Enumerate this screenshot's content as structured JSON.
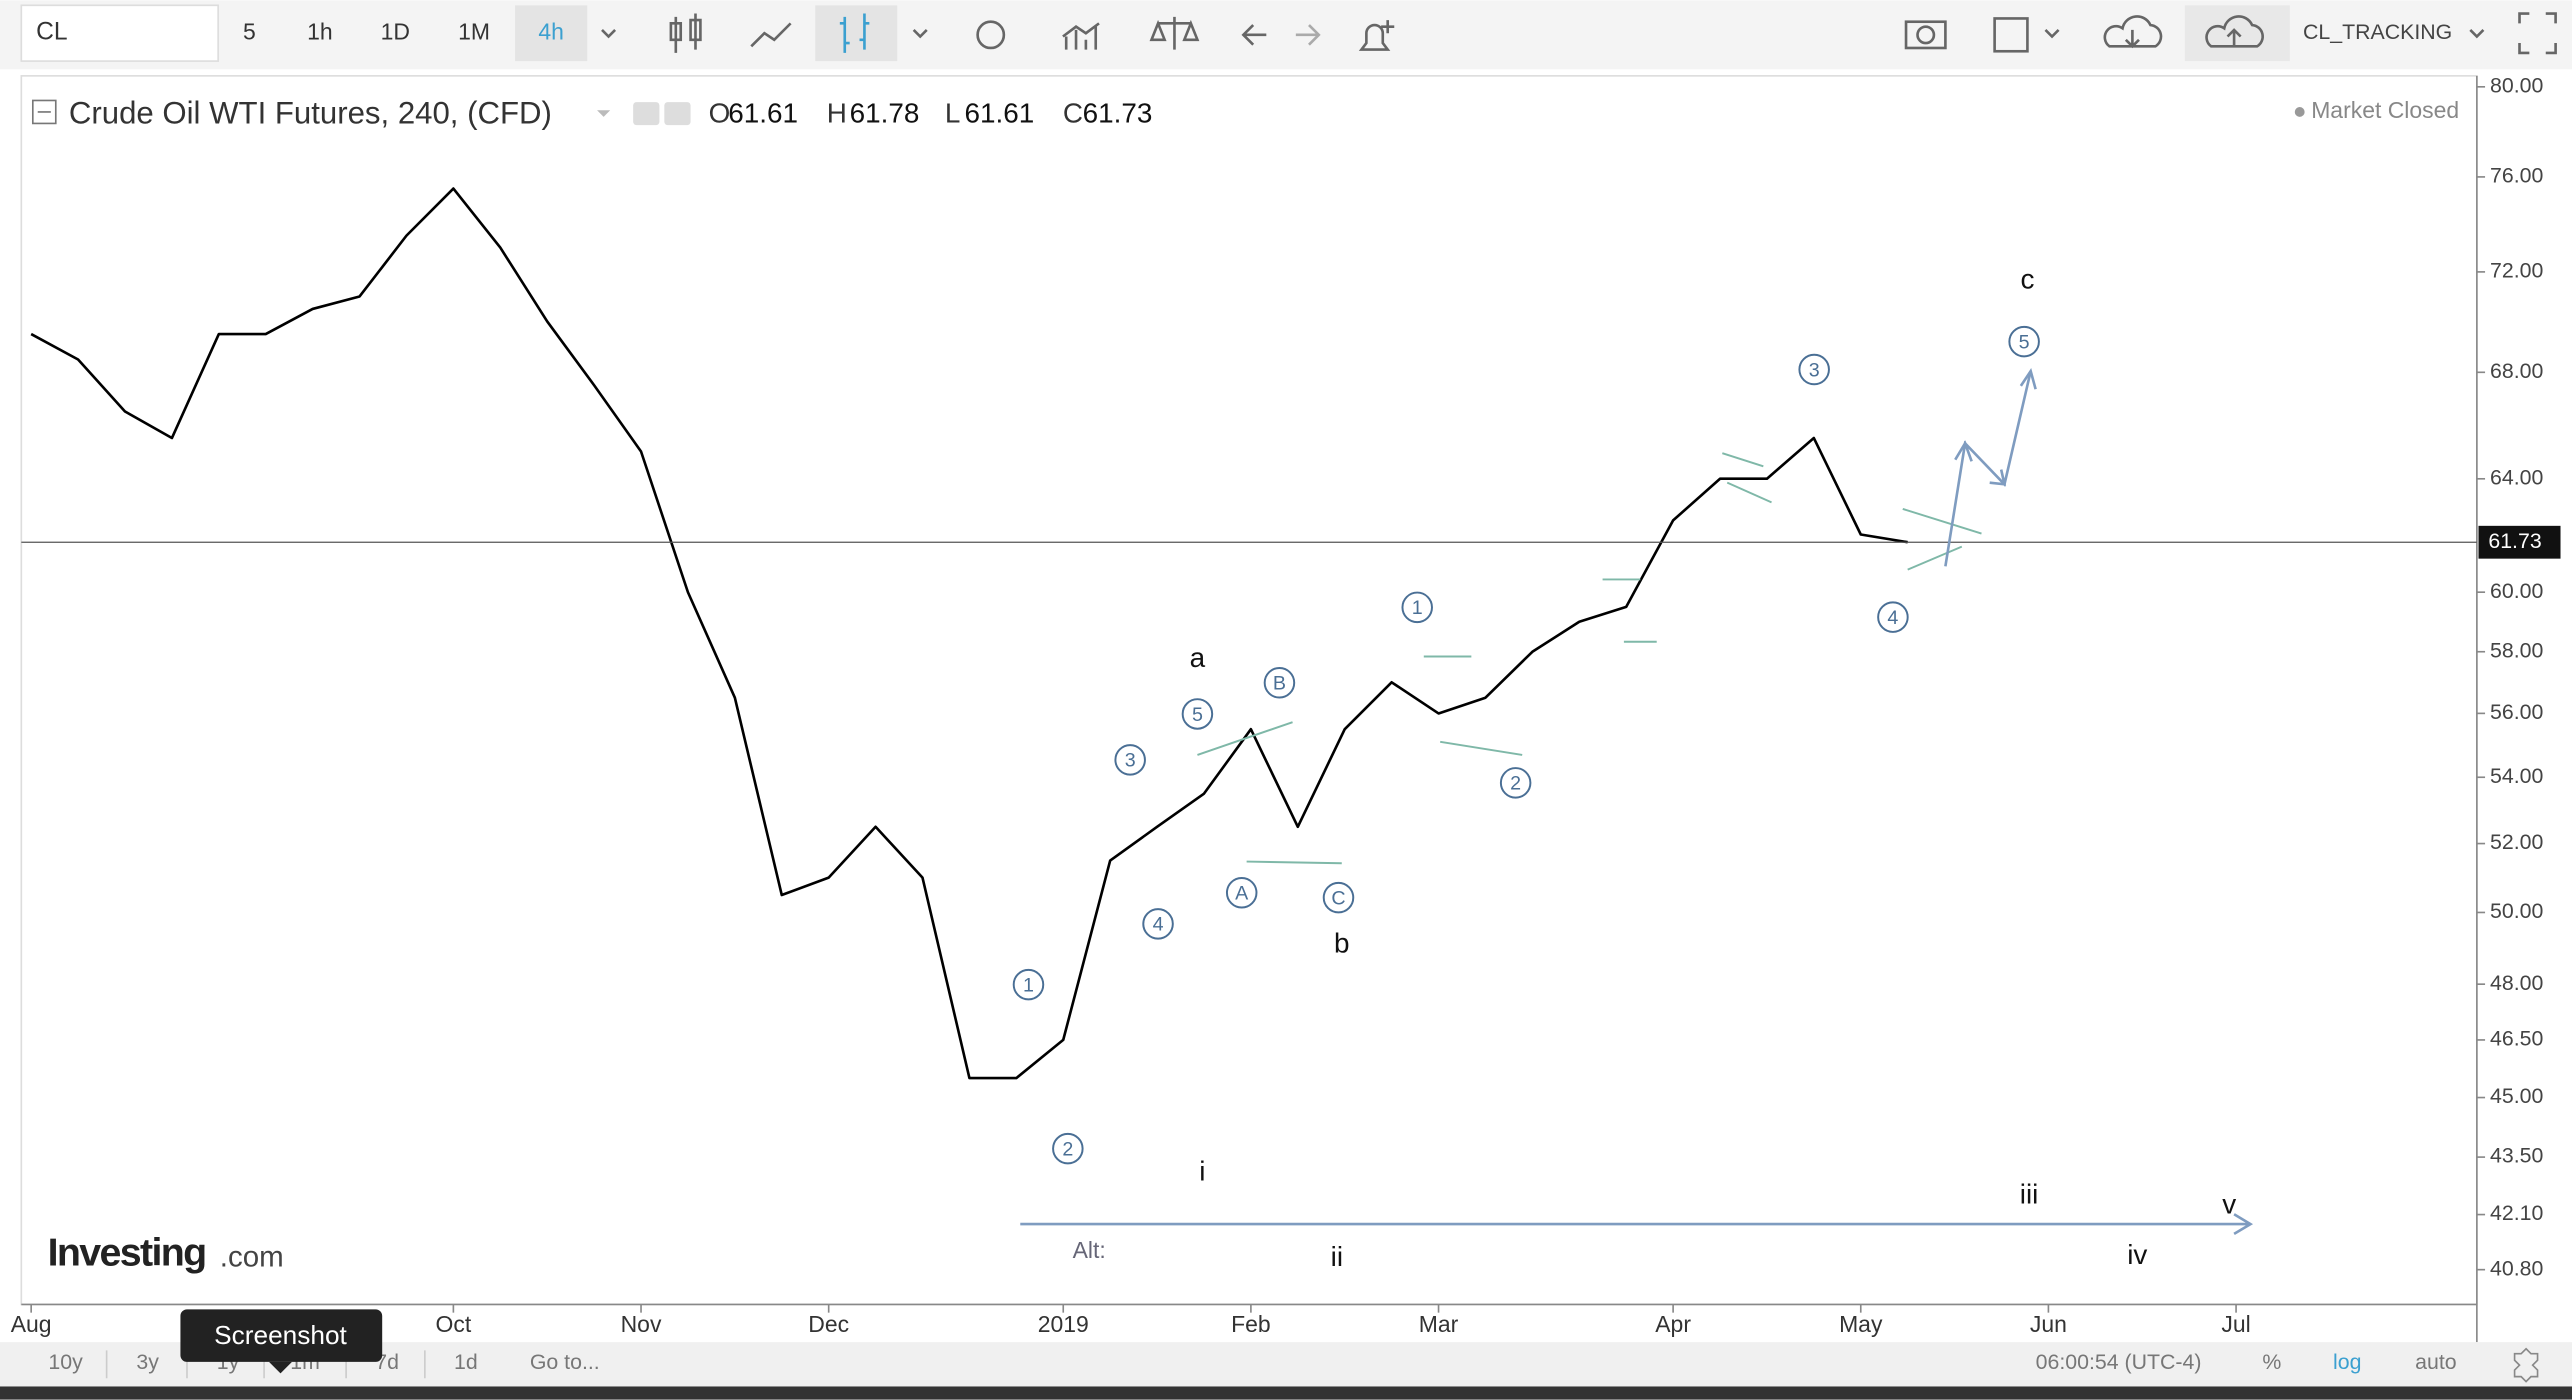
{
  "toolbar": {
    "symbol": "CL",
    "intervals": [
      "5",
      "1h",
      "1D",
      "1M",
      "4h"
    ],
    "active_interval": 4,
    "account": "CL_TRACKING"
  },
  "chart_data": {
    "type": "line",
    "title": "Crude Oil WTI Futures, 240, (CFD)",
    "ohlc": [
      {
        "label": "O",
        "value": 61.61
      },
      {
        "label": "H",
        "value": 61.78
      },
      {
        "label": "L",
        "value": 61.61
      },
      {
        "label": "C",
        "value": 61.73
      }
    ],
    "status": "Market Closed",
    "categories": [
      "Aug",
      null,
      null,
      null,
      null,
      null,
      null,
      null,
      null,
      "Oct",
      null,
      null,
      null,
      "Nov",
      null,
      null,
      null,
      "Dec",
      null,
      null,
      null,
      null,
      "2019",
      null,
      null,
      null,
      "Feb",
      null,
      null,
      null,
      "Mar",
      null,
      null,
      null,
      null,
      "Apr",
      null,
      null,
      null,
      "May",
      null,
      null,
      null,
      "Jun",
      null,
      null,
      null,
      "Jul",
      null,
      null,
      null,
      null,
      null
    ],
    "series": [
      {
        "color": "#000000",
        "values": [
          69.5,
          68.5,
          66.5,
          65.5,
          69.5,
          69.5,
          70.5,
          71,
          73.5,
          75.5,
          73,
          70,
          67.5,
          65,
          60,
          56.5,
          50.5,
          51,
          52.5,
          51,
          45.5,
          45.5,
          46.5,
          51.5,
          52.5,
          53.5,
          55.5,
          52.5,
          55.5,
          57,
          56,
          56.5,
          58,
          59,
          59.5,
          62.5,
          64,
          64,
          65.5,
          62,
          61.73,
          null,
          null,
          null,
          null,
          null,
          null,
          null,
          null,
          null,
          null,
          null,
          null
        ]
      }
    ],
    "last_price": 61.73,
    "log_scale": true,
    "ylim": [
      40,
      80.5
    ],
    "yticks": [
      {
        "value": 80,
        "label": "80.00"
      },
      {
        "value": 76,
        "label": "76.00"
      },
      {
        "value": 72,
        "label": "72.00"
      },
      {
        "value": 68,
        "label": "68.00"
      },
      {
        "value": 64,
        "label": "64.00"
      },
      {
        "value": 60,
        "label": "60.00"
      },
      {
        "value": 58,
        "label": "58.00"
      },
      {
        "value": 56,
        "label": "56.00"
      },
      {
        "value": 54,
        "label": "54.00"
      },
      {
        "value": 52,
        "label": "52.00"
      },
      {
        "value": 50,
        "label": "50.00"
      },
      {
        "value": 48,
        "label": "48.00"
      },
      {
        "value": 46.5,
        "label": "46.50"
      },
      {
        "value": 45,
        "label": "45.00"
      },
      {
        "value": 43.5,
        "label": "43.50"
      },
      {
        "value": 42.1,
        "label": "42.10"
      },
      {
        "value": 40.8,
        "label": "40.80"
      }
    ],
    "wave_labels_circled": [
      "1",
      "2",
      "3",
      "4",
      "5",
      "A",
      "B",
      "C",
      "1",
      "2",
      "3",
      "4",
      "5"
    ],
    "wave_labels": [
      "a",
      "b",
      "c",
      "i",
      "ii",
      "iii",
      "iv",
      "v",
      "Alt:"
    ]
  },
  "logo": {
    "brand": "Investing",
    "suffix": ".com"
  },
  "bottom_bar": {
    "ranges": [
      "10y",
      "3y",
      "1y",
      "1m",
      "7d",
      "1d"
    ],
    "goto": "Go to...",
    "clock": "06:00:54 (UTC-4)",
    "options": [
      "%",
      "log",
      "auto"
    ],
    "active_option": 1
  },
  "tooltip": "Screenshot"
}
